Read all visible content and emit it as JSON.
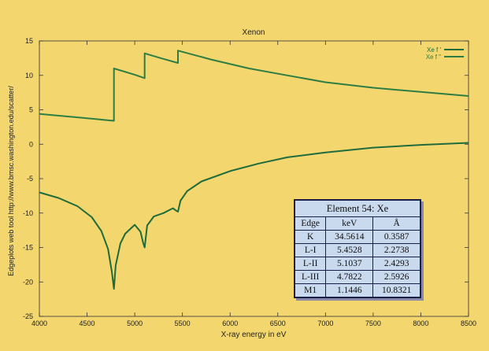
{
  "chart_data": {
    "type": "line",
    "title": "Xenon",
    "xlabel": "X-ray energy in eV",
    "ylabel": "Edgeplots web tool http://www.bmsc.washington.edu/scatter/",
    "xlim": [
      4000,
      8500
    ],
    "ylim": [
      -25,
      15
    ],
    "xticks": [
      4000,
      4500,
      5000,
      5500,
      6000,
      6500,
      7000,
      7500,
      8000,
      8500
    ],
    "yticks": [
      -25,
      -20,
      -15,
      -10,
      -5,
      0,
      5,
      10,
      15
    ],
    "legend_position": "top-right",
    "grid": false,
    "series": [
      {
        "name": "Xe f '",
        "color": "#1f6b3c",
        "points": [
          [
            4000,
            -7.0
          ],
          [
            4200,
            -7.8
          ],
          [
            4400,
            -9.0
          ],
          [
            4550,
            -10.6
          ],
          [
            4650,
            -12.6
          ],
          [
            4720,
            -15.2
          ],
          [
            4760,
            -18.5
          ],
          [
            4782,
            -21.0
          ],
          [
            4800,
            -17.6
          ],
          [
            4850,
            -14.4
          ],
          [
            4900,
            -13.0
          ],
          [
            5000,
            -11.7
          ],
          [
            5060,
            -12.7
          ],
          [
            5090,
            -14.4
          ],
          [
            5104,
            -15.0
          ],
          [
            5130,
            -11.8
          ],
          [
            5200,
            -10.5
          ],
          [
            5300,
            -10.0
          ],
          [
            5400,
            -9.3
          ],
          [
            5430,
            -9.6
          ],
          [
            5453,
            -9.8
          ],
          [
            5480,
            -8.2
          ],
          [
            5550,
            -6.8
          ],
          [
            5700,
            -5.4
          ],
          [
            6000,
            -3.9
          ],
          [
            6300,
            -2.8
          ],
          [
            6600,
            -1.9
          ],
          [
            7000,
            -1.2
          ],
          [
            7500,
            -0.5
          ],
          [
            8000,
            -0.1
          ],
          [
            8500,
            0.2
          ]
        ]
      },
      {
        "name": "Xe f \"",
        "color": "#2e7d43",
        "points": [
          [
            4000,
            4.4
          ],
          [
            4400,
            3.9
          ],
          [
            4782,
            3.4
          ],
          [
            4782,
            11.0
          ],
          [
            5000,
            10.1
          ],
          [
            5104,
            9.6
          ],
          [
            5104,
            13.2
          ],
          [
            5300,
            12.4
          ],
          [
            5453,
            11.8
          ],
          [
            5453,
            13.6
          ],
          [
            5800,
            12.3
          ],
          [
            6200,
            11.0
          ],
          [
            6600,
            10.0
          ],
          [
            7000,
            9.0
          ],
          [
            7500,
            8.2
          ],
          [
            8000,
            7.6
          ],
          [
            8500,
            7.0
          ]
        ]
      }
    ]
  },
  "edge_table": {
    "title": "Element 54: Xe",
    "headers": [
      "Edge",
      "keV",
      "Å"
    ],
    "rows": [
      [
        "K",
        "34.5614",
        "0.3587"
      ],
      [
        "L-I",
        "5.4528",
        "2.2738"
      ],
      [
        "L-II",
        "5.1037",
        "2.4293"
      ],
      [
        "L-III",
        "4.7822",
        "2.5926"
      ],
      [
        "M1",
        "1.1446",
        "10.8321"
      ]
    ]
  }
}
